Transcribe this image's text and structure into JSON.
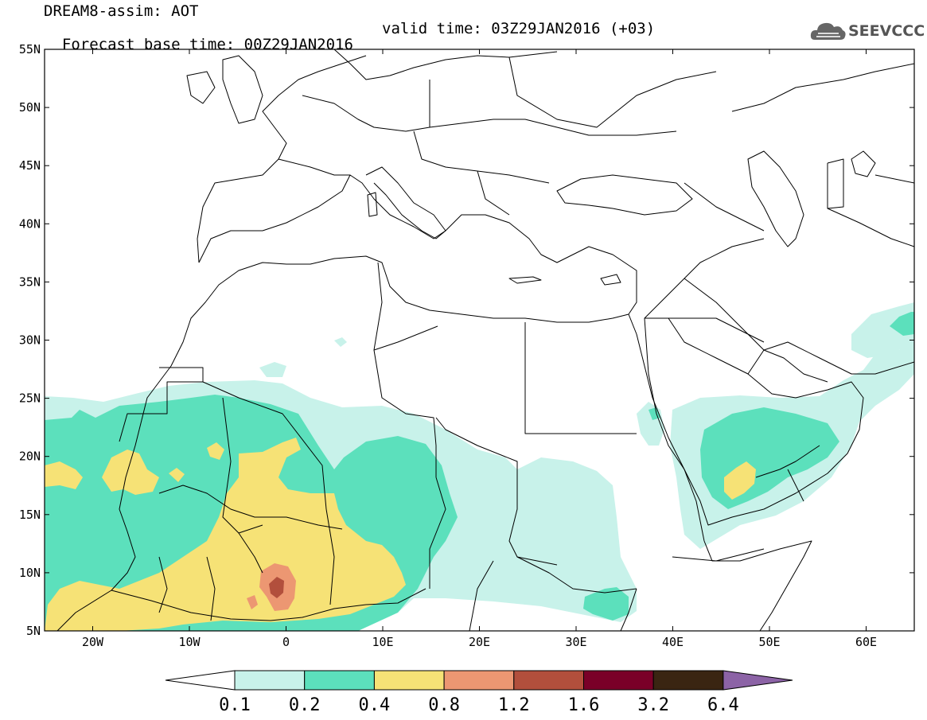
{
  "header": {
    "line1": "DREAM8-assim: AOT",
    "base_time": "Forecast base time: 00Z29JAN2016",
    "valid_time": "valid time: 03Z29JAN2016 (+03)"
  },
  "logo": {
    "text": "SEEVCCC",
    "icon": "cloud-icon"
  },
  "map": {
    "lat_labels": [
      "55N",
      "50N",
      "45N",
      "40N",
      "35N",
      "30N",
      "25N",
      "20N",
      "15N",
      "10N",
      "5N"
    ],
    "lon_labels": [
      "20W",
      "10W",
      "0",
      "10E",
      "20E",
      "30E",
      "40E",
      "50E",
      "60E"
    ]
  },
  "colorbar": {
    "labels": [
      "0.1",
      "0.2",
      "0.4",
      "0.8",
      "1.2",
      "1.6",
      "3.2",
      "6.4"
    ],
    "colors": [
      "#ffffff",
      "#c8f2ea",
      "#5ce0bc",
      "#f6e276",
      "#ec9772",
      "#b24f3c",
      "#7a0028",
      "#3a2512",
      "#8c63a6"
    ]
  },
  "aot_colors": {
    "c02": "#c8f2ea",
    "c04": "#5ce0bc",
    "c08": "#f6e276",
    "c12": "#ec9772",
    "c16": "#b24f3c"
  }
}
